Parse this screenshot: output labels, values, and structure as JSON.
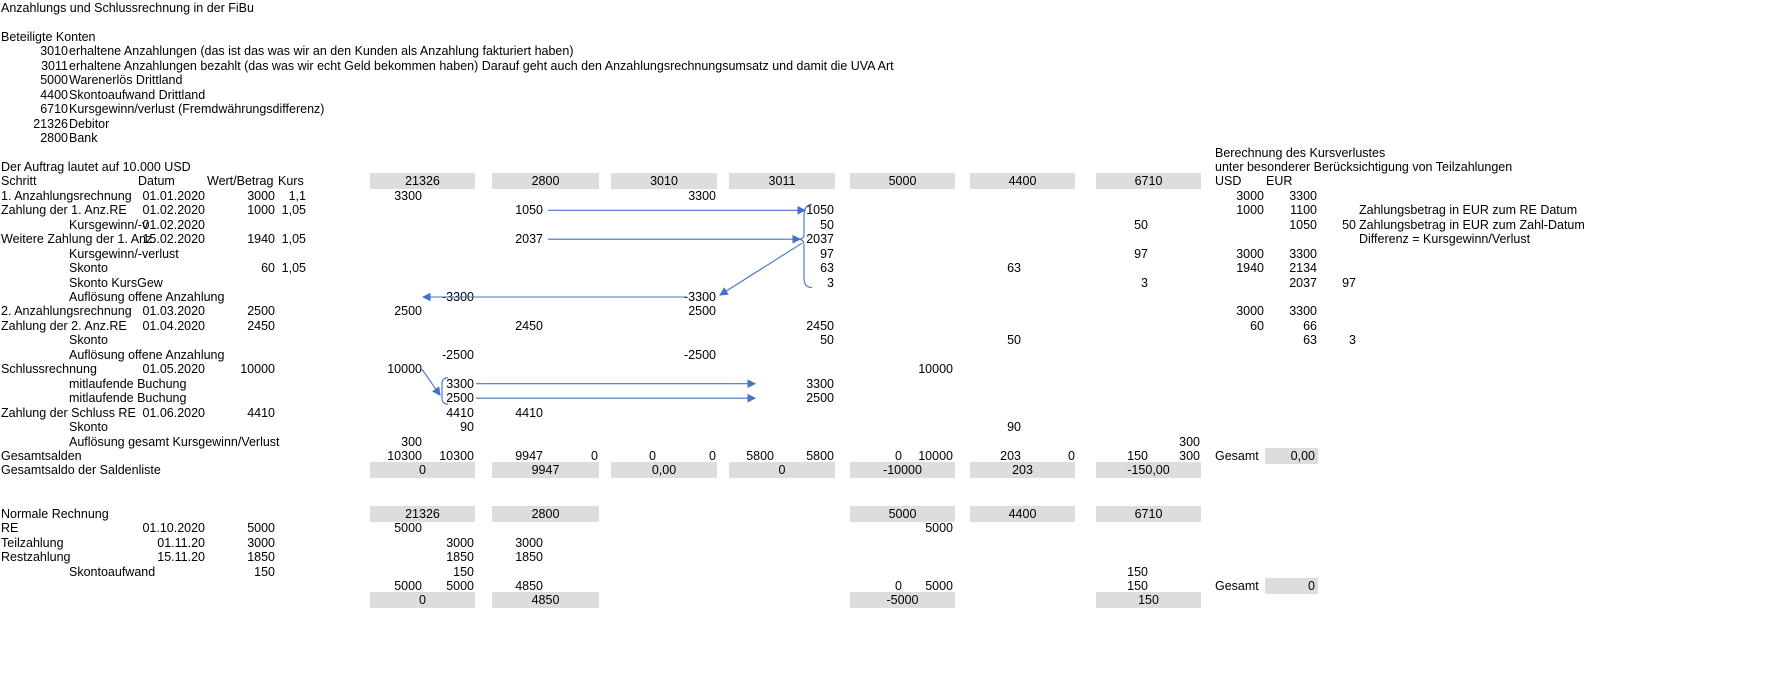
{
  "title": "Anzahlungs und Schlussrechnung in der FiBu",
  "konten_heading": "Beteiligte Konten",
  "konten": [
    {
      "nr": "3010",
      "text": "erhaltene Anzahlungen (das ist das was wir an den Kunden als Anzahlung fakturiert haben)"
    },
    {
      "nr": "3011",
      "text": "erhaltene Anzahlungen bezahlt (das was wir echt Geld bekommen haben) Darauf geht auch den Anzahlungsrechnungsumsatz und damit die UVA Art"
    },
    {
      "nr": "5000",
      "text": "Warenerlös Drittland"
    },
    {
      "nr": "4400",
      "text": "Skontoaufwand Drittland"
    },
    {
      "nr": "6710",
      "text": "Kursgewinn/verlust (Fremdwährungsdifferenz)"
    },
    {
      "nr": "21326",
      "text": "Debitor"
    },
    {
      "nr": "2800",
      "text": "Bank"
    }
  ],
  "auftrag": "Der Auftrag lautet auf 10.000 USD",
  "kursverlust": {
    "title": "Berechnung des Kursverlustes",
    "subtitle": "unter besonderer Berücksichtigung von Teilzahlungen",
    "usd": "USD",
    "eur": "EUR",
    "rows": [
      {
        "a": "3000",
        "b": "3300",
        "c": "",
        "note": ""
      },
      {
        "a": "1000",
        "b": "1100",
        "c": "",
        "note": "Zahlungsbetrag in EUR zum RE Datum"
      },
      {
        "a": "",
        "b": "1050",
        "c": "50",
        "note": "Zahlungsbetrag in EUR zum Zahl-Datum"
      },
      {
        "a": "",
        "b": "",
        "c": "",
        "note": "Differenz = Kursgewinn/Verlust"
      },
      {
        "a": "3000",
        "b": "3300",
        "c": "",
        "note": ""
      },
      {
        "a": "1940",
        "b": "2134",
        "c": "",
        "note": ""
      },
      {
        "a": "",
        "b": "2037",
        "c": "97",
        "note": ""
      },
      {
        "a": "",
        "b": "",
        "c": "",
        "note": ""
      },
      {
        "a": "3000",
        "b": "3300",
        "c": "",
        "note": ""
      },
      {
        "a": "60",
        "b": "66",
        "c": "",
        "note": ""
      },
      {
        "a": "",
        "b": "63",
        "c": "3",
        "note": ""
      }
    ]
  },
  "headers": {
    "schritt": "Schritt",
    "datum": "Datum",
    "wert": "Wert/Betrag",
    "kurs": "Kurs",
    "accounts": [
      "21326",
      "2800",
      "3010",
      "3011",
      "5000",
      "4400",
      "6710"
    ]
  },
  "rows": [
    {
      "label": "1. Anzahlungsrechnung",
      "indent": false,
      "datum": "01.01.2020",
      "wert": "3000",
      "kurs": "1,1",
      "v": [
        "3300",
        "",
        "",
        "",
        "",
        "3300",
        "",
        "",
        "",
        "",
        "",
        "",
        "",
        ""
      ]
    },
    {
      "label": "Zahlung der 1. Anz.RE",
      "indent": false,
      "datum": "01.02.2020",
      "wert": "1000",
      "kurs": "1,05",
      "v": [
        "",
        "",
        "1050",
        "",
        "",
        "",
        "",
        "1050",
        "",
        "",
        "",
        "",
        "",
        ""
      ]
    },
    {
      "label": "Kursgewinn/-v",
      "indent": true,
      "datum": "01.02.2020",
      "wert": "",
      "kurs": "",
      "v": [
        "",
        "",
        "",
        "",
        "",
        "",
        "",
        "50",
        "",
        "",
        "",
        "",
        "50",
        ""
      ]
    },
    {
      "label": "Weitere Zahlung der 1. Anz.",
      "indent": false,
      "datum": "15.02.2020",
      "wert": "1940",
      "kurs": "1,05",
      "v": [
        "",
        "",
        "2037",
        "",
        "",
        "",
        "",
        "2037",
        "",
        "",
        "",
        "",
        "",
        ""
      ]
    },
    {
      "label": "Kursgewinn/-verlust",
      "indent": true,
      "datum": "",
      "wert": "",
      "kurs": "",
      "v": [
        "",
        "",
        "",
        "",
        "",
        "",
        "",
        "97",
        "",
        "",
        "",
        "",
        "97",
        ""
      ]
    },
    {
      "label": "Skonto",
      "indent": true,
      "datum": "",
      "wert": "60",
      "kurs": "1,05",
      "v": [
        "",
        "",
        "",
        "",
        "",
        "",
        "",
        "63",
        "",
        "",
        "63",
        "",
        "",
        ""
      ]
    },
    {
      "label": "Skonto KursGew",
      "indent": true,
      "datum": "",
      "wert": "",
      "kurs": "",
      "v": [
        "",
        "",
        "",
        "",
        "",
        "",
        "",
        "3",
        "",
        "",
        "",
        "",
        "3",
        ""
      ]
    },
    {
      "label": "Auflösung offene Anzahlung",
      "indent": true,
      "datum": "",
      "wert": "",
      "kurs": "",
      "v": [
        "",
        "-3300",
        "",
        "",
        "",
        "-3300",
        "",
        "",
        "",
        "",
        "",
        "",
        "",
        ""
      ]
    },
    {
      "label": "2. Anzahlungsrechnung",
      "indent": false,
      "datum": "01.03.2020",
      "wert": "2500",
      "kurs": "",
      "v": [
        "2500",
        "",
        "",
        "",
        "",
        "2500",
        "",
        "",
        "",
        "",
        "",
        "",
        "",
        ""
      ]
    },
    {
      "label": "Zahlung der 2. Anz.RE",
      "indent": false,
      "datum": "01.04.2020",
      "wert": "2450",
      "kurs": "",
      "v": [
        "",
        "",
        "2450",
        "",
        "",
        "",
        "",
        "2450",
        "",
        "",
        "",
        "",
        "",
        ""
      ]
    },
    {
      "label": "Skonto",
      "indent": true,
      "datum": "",
      "wert": "",
      "kurs": "",
      "v": [
        "",
        "",
        "",
        "",
        "",
        "",
        "",
        "50",
        "",
        "",
        "50",
        "",
        "",
        ""
      ]
    },
    {
      "label": "Auflösung offene Anzahlung",
      "indent": true,
      "datum": "",
      "wert": "",
      "kurs": "",
      "v": [
        "",
        "-2500",
        "",
        "",
        "",
        "-2500",
        "",
        "",
        "",
        "",
        "",
        "",
        "",
        ""
      ]
    },
    {
      "label": "Schlussrechnung",
      "indent": false,
      "datum": "01.05.2020",
      "wert": "10000",
      "kurs": "",
      "v": [
        "10000",
        "",
        "",
        "",
        "",
        "",
        "",
        "",
        "",
        "10000",
        "",
        "",
        "",
        ""
      ]
    },
    {
      "label": "mitlaufende Buchung",
      "indent": true,
      "datum": "",
      "wert": "",
      "kurs": "",
      "v": [
        "",
        "3300",
        "",
        "",
        "",
        "",
        "",
        "3300",
        "",
        "",
        "",
        "",
        "",
        ""
      ]
    },
    {
      "label": "mitlaufende Buchung",
      "indent": true,
      "datum": "",
      "wert": "",
      "kurs": "",
      "v": [
        "",
        "2500",
        "",
        "",
        "",
        "",
        "",
        "2500",
        "",
        "",
        "",
        "",
        "",
        ""
      ]
    },
    {
      "label": "Zahlung der Schluss RE",
      "indent": false,
      "datum": "01.06.2020",
      "wert": "4410",
      "kurs": "",
      "v": [
        "",
        "4410",
        "4410",
        "",
        "",
        "",
        "",
        "",
        "",
        "",
        "",
        "",
        "",
        ""
      ]
    },
    {
      "label": "Skonto",
      "indent": true,
      "datum": "",
      "wert": "",
      "kurs": "",
      "v": [
        "",
        "90",
        "",
        "",
        "",
        "",
        "",
        "",
        "",
        "",
        "90",
        "",
        "",
        ""
      ]
    },
    {
      "label": "Auflösung gesamt Kursgewinn/Verlust",
      "indent": true,
      "datum": "",
      "wert": "",
      "kurs": "",
      "v": [
        "300",
        "",
        "",
        "",
        "",
        "",
        "",
        "",
        "",
        "",
        "",
        "",
        "",
        "300"
      ]
    },
    {
      "label": "Gesamtsalden",
      "indent": false,
      "datum": "",
      "wert": "",
      "kurs": "",
      "v": [
        "10300",
        "10300",
        "9947",
        "0",
        "0",
        "0",
        "5800",
        "5800",
        "0",
        "10000",
        "203",
        "0",
        "150",
        "300"
      ]
    }
  ],
  "gesamt1": {
    "label": "Gesamt",
    "value": "0,00"
  },
  "saldenliste": {
    "label": "Gesamtsaldo der Saldenliste",
    "values": [
      "0",
      "9947",
      "0,00",
      "0",
      "-10000",
      "203",
      "-150,00"
    ]
  },
  "normal": {
    "title": "Normale Rechnung",
    "accounts": [
      "21326",
      "2800",
      "",
      "",
      "5000",
      "4400",
      "6710"
    ],
    "rows": [
      {
        "label": "RE",
        "indent": false,
        "datum": "01.10.2020",
        "wert": "5000",
        "v": [
          "5000",
          "",
          "",
          "",
          "",
          "",
          "",
          "",
          "",
          "5000",
          "",
          "",
          "",
          ""
        ]
      },
      {
        "label": "Teilzahlung",
        "indent": false,
        "datum": "01.11.20",
        "wert": "3000",
        "v": [
          "",
          "3000",
          "3000",
          "",
          "",
          "",
          "",
          "",
          "",
          "",
          "",
          "",
          "",
          ""
        ]
      },
      {
        "label": "Restzahlung",
        "indent": false,
        "datum": "15.11.20",
        "wert": "1850",
        "v": [
          "",
          "1850",
          "1850",
          "",
          "",
          "",
          "",
          "",
          "",
          "",
          "",
          "",
          "",
          ""
        ]
      },
      {
        "label": "Skontoaufwand",
        "indent": true,
        "datum": "",
        "wert": "150",
        "v": [
          "",
          "150",
          "",
          "",
          "",
          "",
          "",
          "",
          "",
          "",
          "",
          "",
          "150",
          ""
        ]
      },
      {
        "label": "",
        "indent": false,
        "datum": "",
        "wert": "",
        "v": [
          "5000",
          "5000",
          "4850",
          "",
          "",
          "",
          "",
          "",
          "0",
          "5000",
          "",
          "",
          "150",
          ""
        ]
      }
    ],
    "gesamt": {
      "label": "Gesamt",
      "value": "0"
    },
    "totals": [
      "0",
      "4850",
      "",
      "",
      "-5000",
      "",
      "150"
    ]
  }
}
